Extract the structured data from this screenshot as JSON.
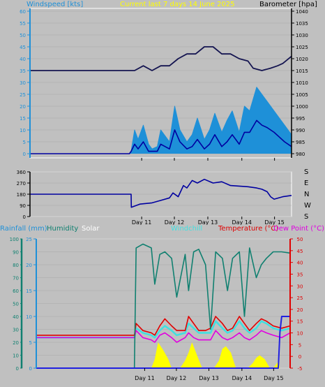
{
  "header": {
    "windspeed_label": "Windspeed [kts]",
    "title": "Current last 7 days 14 June 2025",
    "barometer_label": "Barometer [hpa]"
  },
  "colors": {
    "background": "#c0c0c0",
    "wind_gust": "#1e90d8",
    "wind_avg": "#0000a0",
    "barometer": "#141450",
    "direction": "#0000a0",
    "humidity": "#108070",
    "rain": "#2020e0",
    "solar": "#ffff00",
    "windchill": "#40e0e0",
    "temperature": "#e00000",
    "dewpoint": "#e000e0",
    "title": "#ffff00",
    "windspeed_axis": "#1e90d8"
  },
  "chart_data": [
    {
      "type": "line",
      "name": "wind-barometer",
      "x_ticks": [
        "Day 11",
        "Day 12",
        "Day 13",
        "Day 14",
        "Day 15"
      ],
      "left_axis": {
        "label": "Windspeed [kts]",
        "ylim": [
          0,
          60
        ],
        "ticks": [
          0,
          5,
          10,
          15,
          20,
          25,
          30,
          35,
          40,
          45,
          50,
          55,
          60
        ]
      },
      "right_axis": {
        "label": "Barometer [hpa]",
        "ylim": [
          980,
          1040
        ],
        "ticks": [
          980,
          985,
          990,
          995,
          1000,
          1005,
          1010,
          1015,
          1020,
          1025,
          1030,
          1035,
          1040
        ]
      },
      "series": [
        {
          "name": "Barometer",
          "axis": "right",
          "x": [
            0,
            5.8,
            5.81,
            6.0,
            6.5,
            7.0,
            7.5,
            8.0,
            8.5,
            9.0,
            9.5,
            10.0,
            10.5,
            11.0,
            11.5,
            12.0,
            12.5,
            12.8,
            13.3,
            13.8,
            14.2,
            14.5,
            15.0
          ],
          "y": [
            1015,
            1015,
            1015,
            1015,
            1017,
            1015,
            1017,
            1017,
            1020,
            1022,
            1022,
            1025,
            1025,
            1022,
            1022,
            1020,
            1019,
            1016,
            1015,
            1016,
            1017,
            1018,
            1021
          ]
        },
        {
          "name": "Wind Gust",
          "axis": "left",
          "x": [
            0,
            5.6,
            5.7,
            5.8,
            6.0,
            6.2,
            6.5,
            6.8,
            7.0,
            7.3,
            7.5,
            8.0,
            8.3,
            8.6,
            9.0,
            9.3,
            9.6,
            10.0,
            10.3,
            10.6,
            11.0,
            11.3,
            11.6,
            12.0,
            12.3,
            12.6,
            13.0,
            13.3,
            13.6,
            14.0,
            14.3,
            14.6,
            15.0
          ],
          "y": [
            0,
            0,
            0,
            1,
            10,
            6,
            12,
            4,
            2,
            3,
            10,
            5,
            20,
            10,
            5,
            8,
            15,
            6,
            10,
            17,
            9,
            14,
            18,
            9,
            20,
            18,
            28,
            25,
            22,
            18,
            15,
            12,
            8
          ]
        },
        {
          "name": "Wind Average",
          "axis": "left",
          "x": [
            0,
            5.6,
            5.7,
            5.8,
            6.0,
            6.2,
            6.5,
            6.8,
            7.0,
            7.3,
            7.5,
            8.0,
            8.3,
            8.6,
            9.0,
            9.3,
            9.6,
            10.0,
            10.3,
            10.6,
            11.0,
            11.3,
            11.6,
            12.0,
            12.3,
            12.6,
            13.0,
            13.3,
            13.6,
            14.0,
            14.3,
            14.6,
            15.0
          ],
          "y": [
            0,
            0,
            0,
            1,
            4,
            2,
            5,
            1,
            1,
            1,
            4,
            2,
            10,
            5,
            2,
            3,
            6,
            2,
            4,
            8,
            3,
            5,
            8,
            4,
            9,
            9,
            14,
            12,
            11,
            9,
            7,
            5,
            3
          ]
        }
      ]
    },
    {
      "type": "line",
      "name": "wind-direction",
      "x_ticks": [
        "Day 11",
        "Day 12",
        "Day 13",
        "Day 14",
        "Day 15"
      ],
      "left_axis": {
        "ylim": [
          0,
          360
        ],
        "ticks": [
          0,
          90,
          180,
          270,
          360
        ]
      },
      "right_labels": [
        "S",
        "E",
        "N",
        "W",
        "S"
      ],
      "series": [
        {
          "name": "Direction",
          "x": [
            0,
            5.8,
            5.81,
            6.3,
            7.0,
            7.5,
            8.0,
            8.2,
            8.5,
            8.8,
            9.0,
            9.3,
            9.6,
            10.0,
            10.5,
            11.0,
            11.5,
            12.0,
            12.5,
            13.0,
            13.3,
            13.6,
            13.8,
            14.0,
            14.5,
            15.0
          ],
          "y": [
            180,
            180,
            75,
            100,
            110,
            130,
            150,
            190,
            160,
            250,
            230,
            290,
            270,
            300,
            270,
            280,
            250,
            245,
            240,
            230,
            220,
            200,
            160,
            140,
            160,
            170
          ]
        }
      ]
    },
    {
      "type": "line",
      "name": "rain-humidity-solar-temperature",
      "x_ticks": [
        "Day 11",
        "Day 12",
        "Day 13",
        "Day 14",
        "Day 15"
      ],
      "legend": [
        "Rainfall (mm)",
        "Humidity",
        "Solar",
        "Windchill",
        "Temperature (°C)",
        "Dew Point (°C)"
      ],
      "rain_axis": {
        "ylim": [
          0,
          25
        ],
        "ticks": [
          0,
          5,
          10,
          15,
          20,
          25
        ]
      },
      "humidity_axis": {
        "ylim": [
          0,
          100
        ],
        "ticks": [
          0,
          10,
          20,
          30,
          40,
          50,
          60,
          70,
          80,
          90,
          100
        ]
      },
      "temperature_axis": {
        "ylim": [
          -5,
          50
        ],
        "ticks": [
          -5,
          0,
          5,
          10,
          15,
          20,
          25,
          30,
          35,
          40,
          45,
          50
        ]
      },
      "series": [
        {
          "name": "Humidity",
          "axis": "humidity",
          "x": [
            5.8,
            5.9,
            6.3,
            6.8,
            7.0,
            7.3,
            7.6,
            8.0,
            8.3,
            8.8,
            9.0,
            9.3,
            9.6,
            10.0,
            10.3,
            10.6,
            11.0,
            11.3,
            11.6,
            12.0,
            12.3,
            12.6,
            13.0,
            13.3,
            13.6,
            14.0,
            14.5,
            15.0
          ],
          "y": [
            0,
            93,
            96,
            93,
            65,
            88,
            90,
            85,
            55,
            88,
            60,
            90,
            92,
            80,
            30,
            90,
            85,
            60,
            85,
            90,
            40,
            93,
            70,
            80,
            85,
            90,
            90,
            89
          ]
        },
        {
          "name": "Temperature (°C)",
          "axis": "temperature",
          "x": [
            0,
            5.8,
            5.9,
            6.3,
            6.8,
            7.0,
            7.3,
            7.6,
            8.0,
            8.3,
            8.8,
            9.0,
            9.3,
            9.6,
            10.0,
            10.3,
            10.6,
            11.0,
            11.3,
            11.6,
            12.0,
            12.3,
            12.6,
            13.0,
            13.3,
            13.6,
            14.0,
            14.5,
            15.0
          ],
          "y": [
            9,
            9,
            14,
            11,
            10,
            9,
            13,
            16,
            13,
            11,
            11,
            17,
            14,
            11,
            11,
            12,
            17,
            14,
            11,
            12,
            17,
            14,
            11,
            14,
            16,
            15,
            13,
            12,
            13
          ]
        },
        {
          "name": "Dew Point (°C)",
          "axis": "temperature",
          "x": [
            0,
            5.8,
            5.9,
            6.3,
            6.8,
            7.0,
            7.3,
            7.6,
            8.0,
            8.3,
            8.8,
            9.0,
            9.3,
            9.6,
            10.0,
            10.3,
            10.6,
            11.0,
            11.3,
            11.6,
            12.0,
            12.3,
            12.6,
            13.0,
            13.3,
            13.6,
            14.0,
            14.5,
            15.0
          ],
          "y": [
            8,
            8,
            11,
            8,
            7,
            6,
            9,
            10,
            8,
            6,
            8,
            10,
            8,
            7,
            7,
            7,
            11,
            8,
            7,
            8,
            10,
            8,
            7,
            9,
            11,
            10,
            9,
            8,
            10
          ]
        },
        {
          "name": "Windchill",
          "axis": "temperature",
          "x": [
            0,
            5.8,
            5.9,
            6.3,
            6.8,
            7.0,
            7.3,
            7.6,
            8.0,
            8.3,
            8.8,
            9.0,
            9.3,
            9.6,
            10.0,
            10.3,
            10.6,
            11.0,
            11.3,
            11.6,
            12.0,
            12.3,
            12.6,
            13.0,
            13.3,
            13.6,
            14.0,
            14.5,
            15.0
          ],
          "y": [
            8,
            8,
            12,
            10,
            9,
            8,
            11,
            13,
            11,
            9,
            10,
            14,
            12,
            10,
            10,
            10,
            15,
            12,
            10,
            11,
            15,
            12,
            10,
            12,
            15,
            14,
            12,
            11,
            12
          ]
        },
        {
          "name": "Rainfall (mm)",
          "axis": "rain",
          "x": [
            0,
            14.3,
            14.4,
            14.5,
            14.6,
            15.0
          ],
          "y": [
            0,
            0,
            7,
            10,
            10,
            10
          ]
        },
        {
          "name": "Solar",
          "axis": "humidity",
          "x": [
            6.0,
            6.8,
            7.0,
            7.2,
            7.5,
            7.8,
            8.0,
            8.5,
            8.8,
            9.0,
            9.2,
            9.5,
            9.8,
            10.0,
            10.5,
            10.8,
            11.0,
            11.2,
            11.5,
            11.8,
            12.0,
            12.5,
            12.8,
            13.0,
            13.2,
            13.5,
            13.8,
            14.0,
            14.3,
            14.4
          ],
          "y": [
            0,
            0,
            7,
            20,
            14,
            7,
            0,
            0,
            6,
            12,
            20,
            10,
            0,
            0,
            0,
            6,
            15,
            17,
            12,
            0,
            0,
            0,
            4,
            8,
            10,
            7,
            0,
            0,
            5,
            0
          ]
        }
      ]
    }
  ]
}
